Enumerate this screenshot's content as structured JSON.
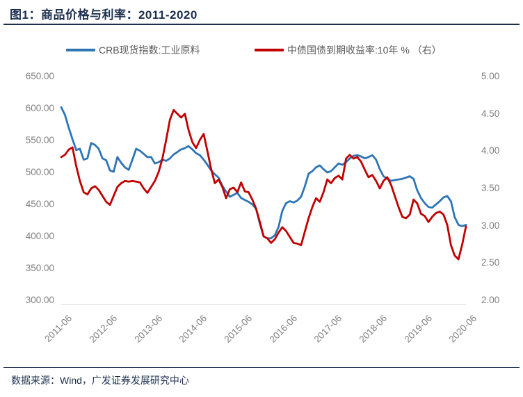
{
  "figure": {
    "title": "图1：商品价格与利率：2011-2020",
    "source": "数据来源：Wind，广发证券发展研究中心"
  },
  "colors": {
    "title_navy": "#1b2e4e",
    "axis_label_gray": "#7f7f7f",
    "legend_text_gray": "#595959",
    "axis_line_gray": "#d9d9d9",
    "crb_blue": "#2e75b6",
    "yield_red": "#c00000"
  },
  "chart_data": {
    "type": "line",
    "title": "商品价格与利率：2011-2020",
    "x_start": "2011-06",
    "x_end": "2020-06",
    "x_frequency": "monthly",
    "x_tick_labels": [
      "2011-06",
      "2012-06",
      "2013-06",
      "2014-06",
      "2015-06",
      "2016-06",
      "2017-06",
      "2018-06",
      "2019-06",
      "2020-06"
    ],
    "grid": false,
    "legend_position": "top",
    "left_axis": {
      "min": 300,
      "max": 650,
      "ticks": [
        "650.00",
        "600.00",
        "550.00",
        "500.00",
        "450.00",
        "400.00",
        "350.00",
        "300.00"
      ]
    },
    "right_axis": {
      "min": 2.0,
      "max": 5.0,
      "ticks": [
        "5.00",
        "4.50",
        "4.00",
        "3.50",
        "3.00",
        "2.50",
        "2.00"
      ]
    },
    "series": [
      {
        "name": "CRB现货指数:工业原料",
        "axis": "left",
        "color": "#2e75b6",
        "values": [
          602,
          590,
          570,
          552,
          535,
          537,
          520,
          522,
          546,
          543,
          537,
          522,
          519,
          503,
          501,
          524,
          515,
          508,
          504,
          520,
          537,
          534,
          529,
          524,
          524,
          514,
          516,
          520,
          518,
          522,
          528,
          532,
          536,
          538,
          541,
          536,
          530,
          527,
          520,
          512,
          503,
          497,
          492,
          479,
          470,
          462,
          465,
          468,
          460,
          457,
          454,
          450,
          443,
          420,
          400,
          397,
          397,
          402,
          415,
          440,
          452,
          455,
          453,
          456,
          462,
          478,
          498,
          502,
          508,
          511,
          505,
          500,
          502,
          508,
          514,
          512,
          516,
          522,
          526,
          527,
          525,
          522,
          524,
          527,
          520,
          505,
          494,
          490,
          487,
          488,
          489,
          490,
          492,
          494,
          490,
          472,
          460,
          452,
          446,
          445,
          450,
          455,
          461,
          463,
          455,
          430,
          418,
          416,
          418
        ]
      },
      {
        "name": "中债国债到期收益率:10年 % （右）",
        "axis": "right",
        "color": "#c00000",
        "values": [
          3.92,
          3.95,
          4.02,
          4.05,
          3.8,
          3.6,
          3.45,
          3.42,
          3.5,
          3.53,
          3.48,
          3.4,
          3.32,
          3.28,
          3.4,
          3.52,
          3.57,
          3.6,
          3.59,
          3.6,
          3.59,
          3.58,
          3.5,
          3.44,
          3.52,
          3.6,
          3.72,
          3.9,
          4.15,
          4.42,
          4.55,
          4.5,
          4.45,
          4.5,
          4.28,
          4.12,
          4.04,
          4.15,
          4.23,
          4.0,
          3.76,
          3.57,
          3.62,
          3.52,
          3.37,
          3.49,
          3.51,
          3.45,
          3.58,
          3.46,
          3.45,
          3.35,
          3.23,
          3.05,
          2.86,
          2.83,
          2.77,
          2.82,
          2.91,
          2.98,
          2.93,
          2.85,
          2.77,
          2.76,
          2.74,
          2.92,
          3.1,
          3.25,
          3.37,
          3.32,
          3.45,
          3.62,
          3.57,
          3.64,
          3.67,
          3.62,
          3.9,
          3.95,
          3.9,
          3.92,
          3.86,
          3.75,
          3.65,
          3.68,
          3.6,
          3.5,
          3.6,
          3.65,
          3.55,
          3.4,
          3.25,
          3.12,
          3.1,
          3.15,
          3.35,
          3.3,
          3.16,
          3.13,
          3.05,
          3.12,
          3.17,
          3.19,
          3.15,
          3.01,
          2.74,
          2.6,
          2.55,
          2.75,
          2.99
        ]
      }
    ]
  }
}
